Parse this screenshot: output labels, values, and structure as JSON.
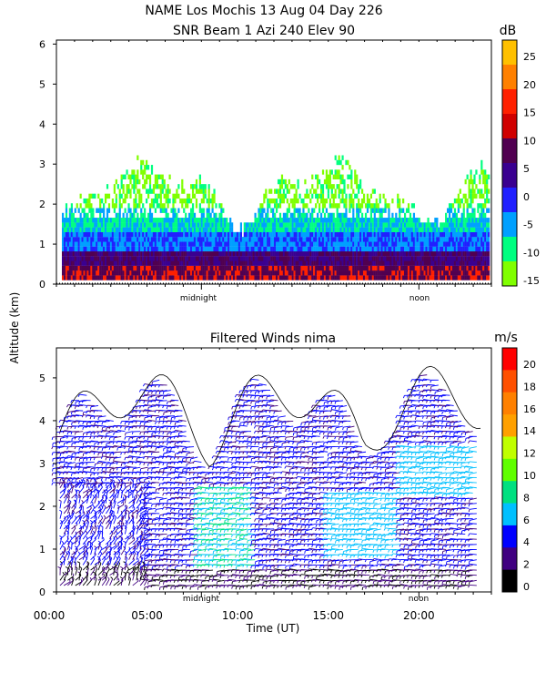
{
  "title_line1": "NAME Los Mochis   13 Aug 04 Day 226",
  "title_line2": "SNR Beam 1 Azi 240 Elev 90",
  "ylabel": "Altitude (km)",
  "xlabel": "Time (UT)",
  "chart_data": [
    {
      "type": "heatmap",
      "title": "SNR Beam 1 Azi 240 Elev 90",
      "ylim": [
        0,
        6.1
      ],
      "yticks": [
        "0",
        "1",
        "2",
        "3",
        "4",
        "5",
        "6"
      ],
      "time_labels": [
        "midnight",
        "noon"
      ],
      "colorbar": {
        "unit": "dB",
        "labels": [
          "25",
          "20",
          "15",
          "10",
          "5",
          "0",
          "-5",
          "-10",
          "-15"
        ],
        "colors": [
          "#ffc000",
          "#ff8000",
          "#ff2000",
          "#d00000",
          "#500050",
          "#3a0090",
          "#2020ff",
          "#00a0ff",
          "#00ff80",
          "#80ff00"
        ]
      }
    },
    {
      "type": "heatmap",
      "title": "Filtered Winds nima",
      "ylim": [
        0,
        5.7
      ],
      "yticks": [
        "0",
        "1",
        "2",
        "3",
        "4",
        "5"
      ],
      "xticks": [
        "00:00",
        "05:00",
        "10:00",
        "15:00",
        "20:00"
      ],
      "time_labels": [
        "midnight",
        "noon"
      ],
      "colorbar": {
        "unit": "m/s",
        "labels": [
          "20",
          "18",
          "16",
          "14",
          "12",
          "10",
          "8",
          "6",
          "4",
          "2",
          "0"
        ],
        "colors": [
          "#ff0000",
          "#ff5000",
          "#ff8000",
          "#ffa000",
          "#c0ff00",
          "#60ff00",
          "#00e080",
          "#00c0ff",
          "#0000ff",
          "#400080",
          "#000000"
        ]
      }
    }
  ]
}
